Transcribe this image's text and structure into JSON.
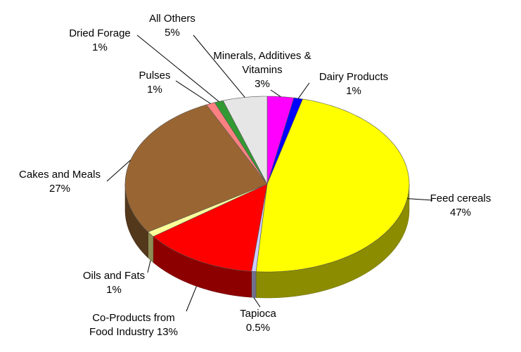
{
  "chart_data": {
    "type": "pie3d",
    "categories": [
      "Minerals, Additives & Vitamins",
      "Dairy Products",
      "Feed cereals",
      "Tapioca",
      "Co-Products from Food Industry",
      "Oils and Fats",
      "Cakes and Meals",
      "Pulses",
      "Dried Forage",
      "All Others"
    ],
    "values": [
      3,
      1,
      47,
      0.5,
      13,
      1,
      27,
      1,
      1,
      5
    ],
    "value_labels": [
      "3%",
      "1%",
      "47%",
      "0.5%",
      "13%",
      "1%",
      "27%",
      "1%",
      "1%",
      "5%"
    ],
    "colors": [
      "#ff00ff",
      "#0000ff",
      "#ffff00",
      "#ccccff",
      "#ff0000",
      "#ffff99",
      "#996633",
      "#ff8080",
      "#339933",
      "#e6e6e6"
    ]
  }
}
